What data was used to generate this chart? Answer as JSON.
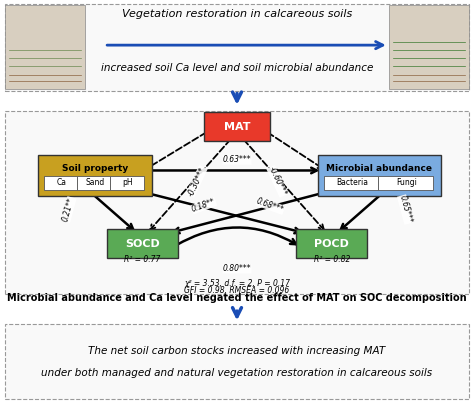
{
  "title_top1": "Vegetation restoration in calcareous soils",
  "title_top2": "increased soil Ca level and soil microbial abundance",
  "caption_mid": "Microbial abundance and Ca level negated the effect of MAT on SOC decomposition",
  "title_bottom2": "The net soil carbon stocks increased with increasing MAT",
  "title_bottom3": "under both managed and natural vegetation restoration in calcareous soils",
  "mat_label": "MAT",
  "soil_label": "Soil property",
  "soil_items": [
    "Ca",
    "Sand",
    "pH"
  ],
  "microbial_label": "Microbial abundance",
  "microbial_items": [
    "Bacteria",
    "Fungi"
  ],
  "socd_label": "SOCD",
  "pocd_label": "POCD",
  "r2_socd": "R² = 0.77",
  "r2_pocd": "R² = 0.82",
  "stats_line1": "χ² = 3.53, d.f. = 2, P = 0.17",
  "stats_line2": "GFI = 0.98, RMSEA = 0.096",
  "lbl_soil_mic": "0.63***",
  "lbl_soil_socd": "0.21**",
  "lbl_soil_pocd": "0.18**",
  "lbl_mic_pocd": "0.65***",
  "lbl_mic_socd": "0.68***",
  "lbl_socd_pocd": "0.80***",
  "lbl_mat_socd": "-0.30***",
  "lbl_mat_pocd": "-0.60***",
  "colors": {
    "mat_box": "#e8392a",
    "soil_box": "#c8a020",
    "microbial_box": "#7aabe0",
    "socd_box": "#5aaa55",
    "pocd_box": "#5aaa55",
    "background": "#ffffff",
    "panel_bg": "#f9f9f9",
    "arrow_solid": "#111111",
    "section_border": "#999999",
    "blue_arrow": "#1a4db5"
  },
  "fig_width": 4.74,
  "fig_height": 4.03,
  "dpi": 100
}
